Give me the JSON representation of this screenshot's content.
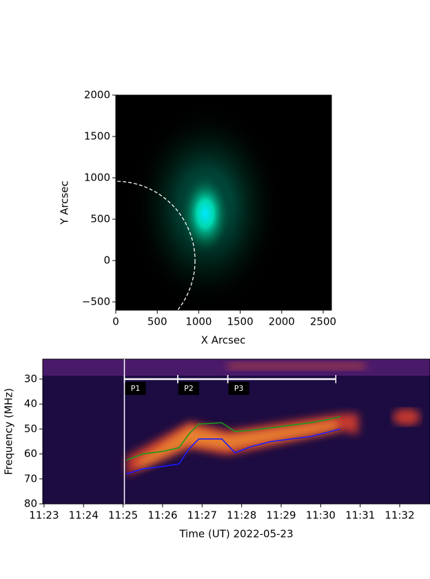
{
  "chart_data": [
    {
      "type": "image",
      "xlabel": "X Arcsec",
      "ylabel": "Y Arcsec",
      "xlim": [
        0,
        2600
      ],
      "ylim": [
        -600,
        2000
      ],
      "xticks": [
        0,
        500,
        1000,
        1500,
        2000,
        2500
      ],
      "yticks": [
        {
          "value": -500,
          "label": "−500"
        },
        0,
        500,
        1000,
        1500,
        2000
      ]
    },
    {
      "type": "line",
      "xlabel": "Time (UT) 2022-05-23",
      "ylabel": "Frequency (MHz)",
      "xlim": [
        "11:22:58",
        "11:32:46"
      ],
      "ylim": [
        80,
        22
      ],
      "xticks": [
        "11:23",
        "11:24",
        "11:25",
        "11:26",
        "11:27",
        "11:28",
        "11:29",
        "11:30",
        "11:31",
        "11:32"
      ],
      "yticks": [
        30,
        40,
        50,
        60,
        70,
        80
      ],
      "x": [
        "11:25:05",
        "11:25:30",
        "11:26:00",
        "11:26:25",
        "11:26:40",
        "11:26:55",
        "11:27:30",
        "11:27:50",
        "11:28:15",
        "11:28:45",
        "11:29:15",
        "11:29:45",
        "11:30:15",
        "11:30:30"
      ],
      "series": [
        {
          "color": "#1a9a1a",
          "values": [
            62.5,
            60,
            59,
            57.5,
            52,
            48,
            47.5,
            51,
            50.5,
            49.5,
            48.5,
            47.5,
            46,
            45
          ]
        },
        {
          "color": "#1a1aff",
          "values": [
            68,
            66,
            65,
            64,
            58,
            54,
            54,
            59.5,
            57,
            55,
            54,
            53,
            51,
            50
          ]
        }
      ],
      "phases": [
        {
          "label": "P1",
          "start": "11:25:02",
          "end": "11:26:23"
        },
        {
          "label": "P2",
          "start": "11:26:23",
          "end": "11:27:39"
        },
        {
          "label": "P3",
          "start": "11:27:39",
          "end": "11:30:23"
        }
      ]
    }
  ]
}
